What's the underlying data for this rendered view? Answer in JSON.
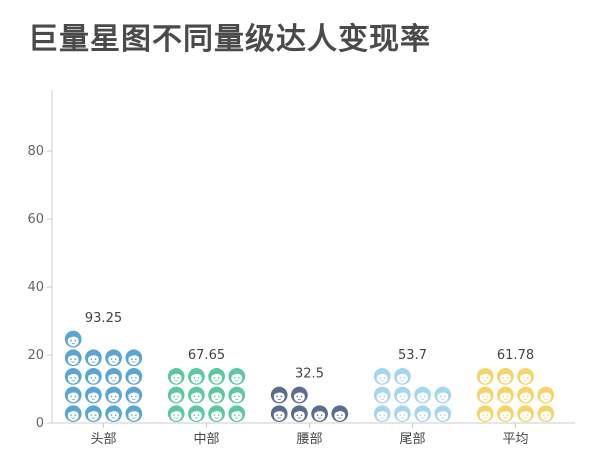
{
  "chart_data": {
    "type": "bar",
    "title": "巨量星图不同量级达人变现率",
    "categories": [
      "头部",
      "中部",
      "腰部",
      "尾部",
      "平均"
    ],
    "values": [
      93.25,
      67.65,
      32.5,
      53.7,
      61.78
    ],
    "data_labels": [
      "93.25",
      "67.65",
      "32.5",
      "53.7",
      "61.78"
    ],
    "colors": [
      "#5aa5d3",
      "#5cc8a0",
      "#5b6d8f",
      "#a6d6ef",
      "#f3d56a"
    ],
    "ylim": [
      0,
      93.25
    ],
    "yticks": [
      0,
      20,
      40,
      60,
      80
    ],
    "unit_value": 5.48,
    "columns_per_bar": 4,
    "xlabel": "",
    "ylabel": "",
    "grid": false,
    "icon": "person-face-icon"
  }
}
